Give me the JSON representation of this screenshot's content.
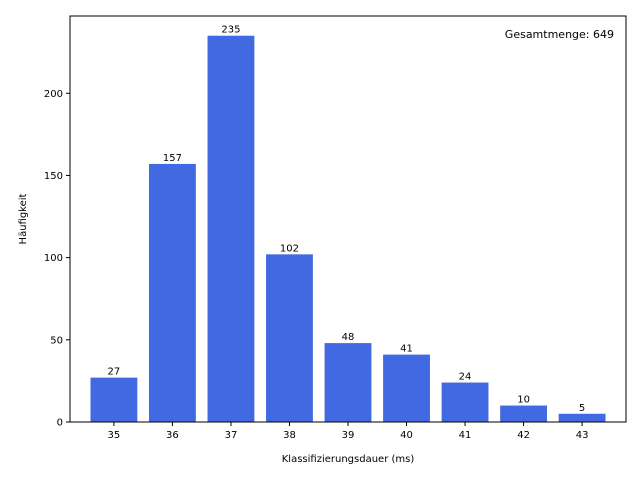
{
  "chart_data": {
    "type": "bar",
    "categories": [
      "35",
      "36",
      "37",
      "38",
      "39",
      "40",
      "41",
      "42",
      "43"
    ],
    "values": [
      27,
      157,
      235,
      102,
      48,
      41,
      24,
      10,
      5
    ],
    "data_labels": [
      "27",
      "157",
      "235",
      "102",
      "48",
      "41",
      "24",
      "10",
      "5"
    ],
    "title": "",
    "xlabel": "Klassifizierungsdauer (ms)",
    "ylabel": "Häufigkeit",
    "ylim": [
      0,
      247
    ],
    "yticks": [
      0,
      50,
      100,
      150,
      200
    ],
    "ytick_labels": [
      "0",
      "50",
      "100",
      "150",
      "200"
    ],
    "annotation": "Gesamtmenge: 649",
    "bar_color": "#4169e1",
    "grid": false,
    "legend": "none"
  }
}
